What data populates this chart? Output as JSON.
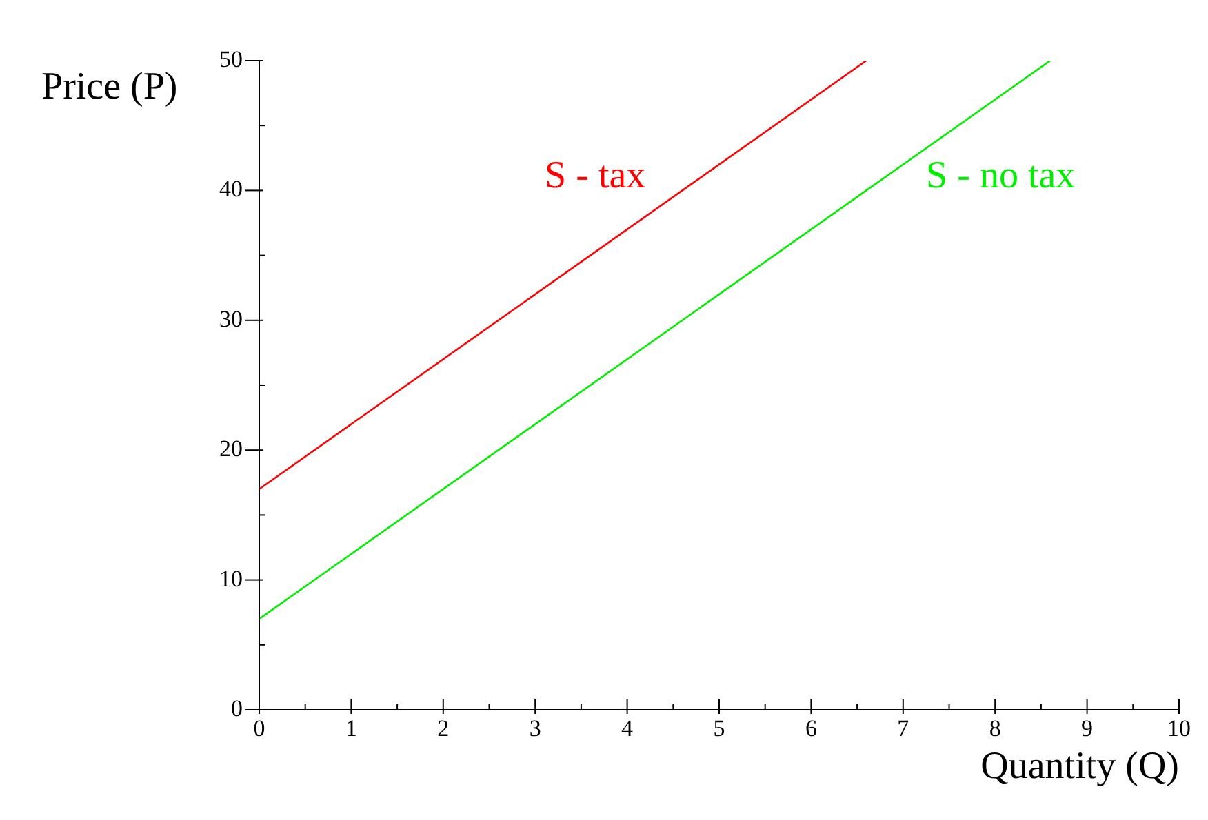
{
  "chart_data": {
    "type": "line",
    "xlabel": "Quantity (Q)",
    "ylabel": "Price (P)",
    "series": [
      {
        "name": "S - tax",
        "color": "#ff0000",
        "x": [
          0,
          6.6
        ],
        "values": [
          17,
          50
        ]
      },
      {
        "name": "S - no tax",
        "color": "#00ee00",
        "x": [
          0,
          8.6
        ],
        "values": [
          7,
          50
        ]
      }
    ],
    "xlim": [
      0,
      10
    ],
    "ylim": [
      0,
      50
    ],
    "xticks": [
      0,
      {
        "value": 0.5,
        "label": null
      },
      1,
      {
        "value": 1.5,
        "label": null
      },
      2,
      {
        "value": 2.5,
        "label": null
      },
      3,
      {
        "value": 3.5,
        "label": null
      },
      4,
      {
        "value": 4.5,
        "label": null
      },
      5,
      {
        "value": 5.5,
        "label": null
      },
      6,
      {
        "value": 6.5,
        "label": null
      },
      7,
      {
        "value": 7.5,
        "label": null
      },
      8,
      {
        "value": 8.5,
        "label": null
      },
      9,
      {
        "value": 9.5,
        "label": null
      },
      10
    ],
    "yticks": [
      0,
      {
        "value": 5,
        "label": null
      },
      10,
      {
        "value": 15,
        "label": null
      },
      20,
      {
        "value": 25,
        "label": null
      },
      30,
      {
        "value": 35,
        "label": null
      },
      40,
      {
        "value": 45,
        "label": null
      },
      50
    ],
    "legend": false,
    "marker": "none",
    "line_style": "solid"
  }
}
